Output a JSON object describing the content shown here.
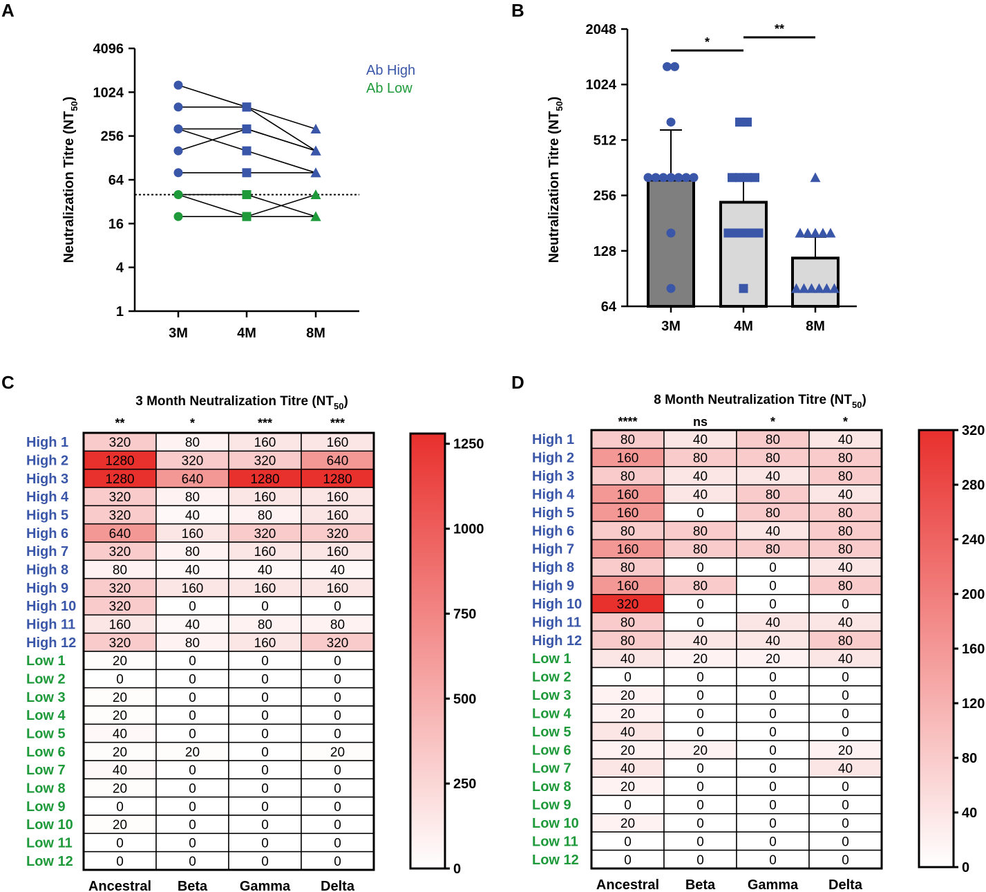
{
  "colors": {
    "high": "#3a56a8",
    "low": "#1f9a3b",
    "bar_3M": "#7f7f7f",
    "bar_other": "#d9d9d9",
    "heat_max": "#e8302d",
    "heat_min": "#ffffff"
  },
  "panel_labels": {
    "a": "A",
    "b": "B",
    "c": "C",
    "d": "D"
  },
  "chart_data": [
    {
      "id": "A",
      "type": "line",
      "ylabel": "Neutralization Titre (NT",
      "ylabel_sub": "50",
      "ylabel_close": ")",
      "yscale": "log2",
      "ylim": [
        1,
        4096
      ],
      "yticks": [
        1,
        4,
        16,
        64,
        256,
        1024,
        4096
      ],
      "categories": [
        "3M",
        "4M",
        "8M"
      ],
      "threshold": 40,
      "legend": [
        {
          "label": "Ab High",
          "color_key": "high"
        },
        {
          "label": "Ab Low",
          "color_key": "low"
        }
      ],
      "series": [
        {
          "name": "High",
          "values": [
            1280,
            640,
            320
          ]
        },
        {
          "name": "High",
          "values": [
            640,
            640,
            160
          ]
        },
        {
          "name": "High",
          "values": [
            320,
            320,
            160
          ]
        },
        {
          "name": "High",
          "values": [
            320,
            160,
            80
          ]
        },
        {
          "name": "High",
          "values": [
            160,
            320,
            160
          ]
        },
        {
          "name": "High",
          "values": [
            80,
            80,
            80
          ]
        },
        {
          "name": "Low",
          "values": [
            40,
            40,
            20
          ]
        },
        {
          "name": "Low",
          "values": [
            40,
            20,
            40
          ]
        },
        {
          "name": "Low",
          "values": [
            20,
            20,
            20
          ]
        }
      ]
    },
    {
      "id": "B",
      "type": "bar",
      "ylabel": "Neutralization Titre (NT",
      "ylabel_sub": "50",
      "ylabel_close": ")",
      "yscale": "log2",
      "ylim": [
        64,
        2048
      ],
      "yticks": [
        64,
        128,
        256,
        512,
        1024,
        2048
      ],
      "categories": [
        "3M",
        "4M",
        "8M"
      ],
      "means": [
        310,
        235,
        117
      ],
      "error_upper": [
        580,
        320,
        152
      ],
      "points": [
        [
          1280,
          1280,
          640,
          320,
          320,
          320,
          320,
          320,
          320,
          320,
          160,
          80
        ],
        [
          640,
          640,
          320,
          320,
          320,
          320,
          160,
          160,
          160,
          160,
          160,
          80
        ],
        [
          320,
          160,
          160,
          160,
          160,
          160,
          80,
          80,
          80,
          80,
          80,
          80
        ]
      ],
      "significance": [
        {
          "from": "3M",
          "to": "4M",
          "label": "*"
        },
        {
          "from": "4M",
          "to": "8M",
          "label": "**"
        }
      ]
    },
    {
      "id": "C",
      "type": "heatmap",
      "title": "3 Month Neutralization Titre (NT",
      "title_sub": "50",
      "title_close": ")",
      "columns": [
        "Ancestral",
        "Beta",
        "Gamma",
        "Delta"
      ],
      "significance": [
        "**",
        "*",
        "***",
        "***"
      ],
      "rows": [
        "High 1",
        "High 2",
        "High 3",
        "High 4",
        "High 5",
        "High 6",
        "High 7",
        "High 8",
        "High 9",
        "High 10",
        "High 11",
        "High 12",
        "Low 1",
        "Low 2",
        "Low 3",
        "Low 4",
        "Low 5",
        "Low 6",
        "Low 7",
        "Low 8",
        "Low 9",
        "Low 10",
        "Low 11",
        "Low 12"
      ],
      "values": [
        [
          320,
          80,
          160,
          160
        ],
        [
          1280,
          320,
          320,
          640
        ],
        [
          1280,
          640,
          1280,
          1280
        ],
        [
          320,
          80,
          160,
          160
        ],
        [
          320,
          40,
          80,
          160
        ],
        [
          640,
          160,
          320,
          320
        ],
        [
          320,
          80,
          160,
          160
        ],
        [
          80,
          40,
          40,
          40
        ],
        [
          320,
          160,
          160,
          160
        ],
        [
          320,
          0,
          0,
          0
        ],
        [
          160,
          40,
          80,
          80
        ],
        [
          320,
          80,
          160,
          320
        ],
        [
          20,
          0,
          0,
          0
        ],
        [
          0,
          0,
          0,
          0
        ],
        [
          20,
          0,
          0,
          0
        ],
        [
          20,
          0,
          0,
          0
        ],
        [
          40,
          0,
          0,
          0
        ],
        [
          20,
          20,
          0,
          20
        ],
        [
          40,
          0,
          0,
          0
        ],
        [
          20,
          0,
          0,
          0
        ],
        [
          0,
          0,
          0,
          0
        ],
        [
          20,
          0,
          0,
          0
        ],
        [
          0,
          0,
          0,
          0
        ],
        [
          0,
          0,
          0,
          0
        ]
      ],
      "scale_max": 1280,
      "colorbar_ticks": [
        0,
        250,
        500,
        750,
        1000,
        1250
      ]
    },
    {
      "id": "D",
      "type": "heatmap",
      "title": "8 Month Neutralization Titre (NT",
      "title_sub": "50",
      "title_close": ")",
      "columns": [
        "Ancestral",
        "Beta",
        "Gamma",
        "Delta"
      ],
      "significance": [
        "****",
        "ns",
        "*",
        "*"
      ],
      "rows": [
        "High 1",
        "High 2",
        "High 3",
        "High 4",
        "High 5",
        "High 6",
        "High 7",
        "High 8",
        "High 9",
        "High 10",
        "High 11",
        "High 12",
        "Low 1",
        "Low 2",
        "Low 3",
        "Low 4",
        "Low 5",
        "Low 6",
        "Low 7",
        "Low 8",
        "Low 9",
        "Low 10",
        "Low 11",
        "Low 12"
      ],
      "values": [
        [
          80,
          40,
          80,
          40
        ],
        [
          160,
          80,
          80,
          80
        ],
        [
          80,
          40,
          40,
          80
        ],
        [
          160,
          40,
          80,
          40
        ],
        [
          160,
          0,
          80,
          80
        ],
        [
          80,
          80,
          40,
          80
        ],
        [
          160,
          80,
          80,
          80
        ],
        [
          80,
          0,
          0,
          40
        ],
        [
          160,
          80,
          0,
          80
        ],
        [
          320,
          0,
          0,
          0
        ],
        [
          80,
          0,
          40,
          40
        ],
        [
          80,
          40,
          40,
          80
        ],
        [
          40,
          20,
          20,
          40
        ],
        [
          0,
          0,
          0,
          0
        ],
        [
          20,
          0,
          0,
          0
        ],
        [
          20,
          0,
          0,
          0
        ],
        [
          40,
          0,
          0,
          0
        ],
        [
          20,
          20,
          0,
          20
        ],
        [
          40,
          0,
          0,
          40
        ],
        [
          20,
          0,
          0,
          0
        ],
        [
          0,
          0,
          0,
          0
        ],
        [
          20,
          0,
          0,
          0
        ],
        [
          0,
          0,
          0,
          0
        ],
        [
          0,
          0,
          0,
          0
        ]
      ],
      "scale_max": 320,
      "colorbar_ticks": [
        0,
        40,
        80,
        120,
        160,
        200,
        240,
        280,
        320
      ]
    }
  ]
}
